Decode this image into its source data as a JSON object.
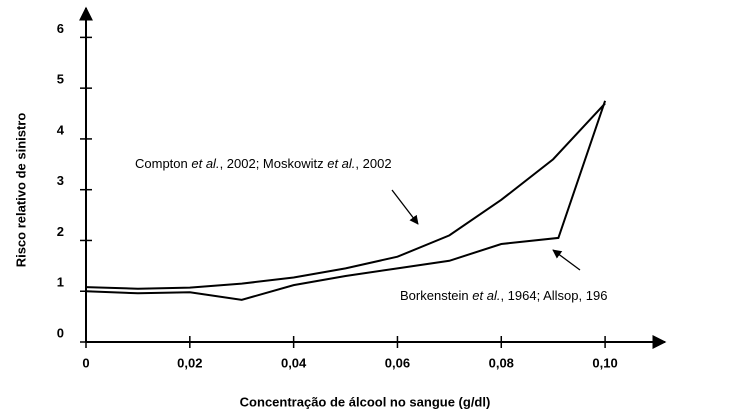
{
  "chart_data": {
    "type": "line",
    "x_label": "Concentração de álcool no sangue (g/dl)",
    "y_label": "Risco relativo de sinistro",
    "xlim": [
      0,
      0.11
    ],
    "ylim": [
      0,
      6.5
    ],
    "xticks": [
      0,
      {
        "value": 0.02,
        "label": "0,02"
      },
      {
        "value": 0.04,
        "label": "0,04"
      },
      {
        "value": 0.06,
        "label": "0,06"
      },
      {
        "value": 0.08,
        "label": "0,08"
      },
      {
        "value": 0.1,
        "label": "0,10"
      }
    ],
    "yticks": [
      0,
      1,
      2,
      3,
      4,
      5,
      6
    ],
    "series": [
      {
        "color": "#000000",
        "x": [
          0,
          0.01,
          0.02,
          0.03,
          0.04,
          0.05,
          0.06,
          0.07,
          0.08,
          0.09,
          0.1
        ],
        "values": [
          1.08,
          1.05,
          1.07,
          1.15,
          1.27,
          1.45,
          1.68,
          2.1,
          2.8,
          3.6,
          4.7
        ]
      },
      {
        "color": "#000000",
        "x": [
          0,
          0.01,
          0.02,
          0.03,
          0.04,
          0.05,
          0.06,
          0.07,
          0.08,
          0.091,
          0.1
        ],
        "values": [
          1.0,
          0.96,
          0.98,
          0.83,
          1.12,
          1.3,
          1.45,
          1.6,
          1.93,
          2.05,
          4.75
        ]
      }
    ],
    "annotations": [
      {
        "parts": [
          "Compton ",
          "et al.",
          ", 2002; Moskowitz ",
          "et al.",
          ", 2002"
        ]
      },
      {
        "parts": [
          "Borkenstein ",
          "et al.",
          ", 1964; Allsop, 196"
        ]
      }
    ]
  }
}
